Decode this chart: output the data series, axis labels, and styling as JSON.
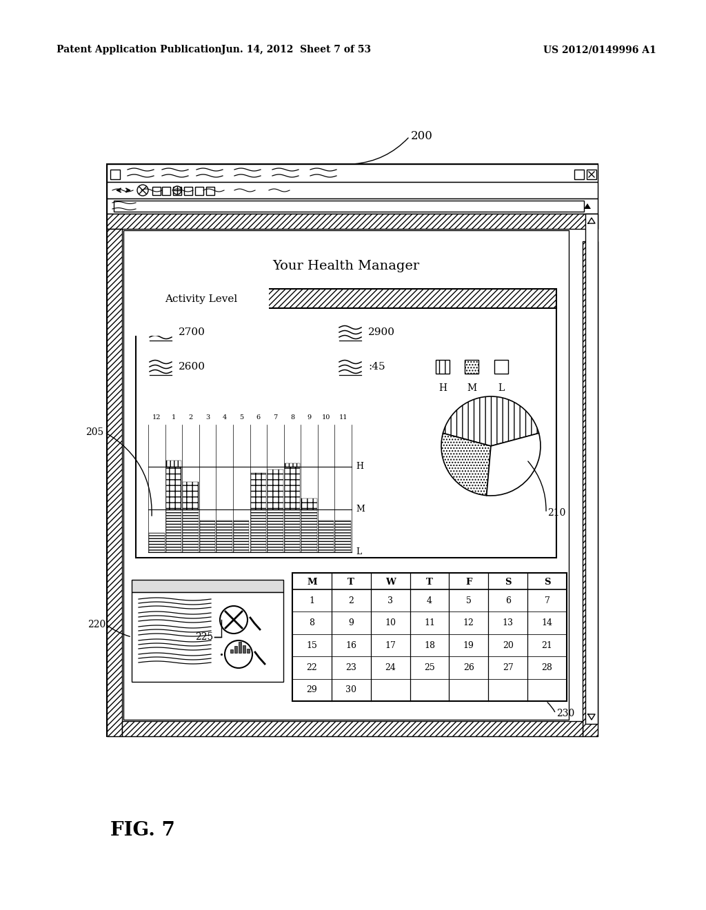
{
  "title_header_left": "Patent Application Publication",
  "title_header_mid": "Jun. 14, 2012  Sheet 7 of 53",
  "title_header_right": "US 2012/0149996 A1",
  "fig_label": "FIG. 7",
  "label_200": "200",
  "label_205": "205",
  "label_210": "210",
  "label_220": "220",
  "label_225": "225",
  "label_230": "230",
  "health_manager_title": "Your Health Manager",
  "activity_level_label": "Activity Level",
  "values_row1": [
    "2700",
    "2900"
  ],
  "values_row2": [
    "2600",
    ":45"
  ],
  "bar_hours": [
    "12",
    "1",
    "2",
    "3",
    "4",
    "5",
    "6",
    "7",
    "8",
    "9",
    "10",
    "11"
  ],
  "hml_labels": [
    "H",
    "M",
    "L"
  ],
  "legend_labels": [
    "H",
    "M",
    "L"
  ],
  "calendar_header": [
    "M",
    "T",
    "W",
    "T",
    "F",
    "S",
    "S"
  ],
  "calendar_rows": [
    [
      "1",
      "2",
      "3",
      "4",
      "5",
      "6",
      "7"
    ],
    [
      "8",
      "9",
      "10",
      "11",
      "12",
      "13",
      "14"
    ],
    [
      "15",
      "16",
      "17",
      "18",
      "19",
      "20",
      "21"
    ],
    [
      "22",
      "23",
      "24",
      "25",
      "26",
      "27",
      "28"
    ],
    [
      "29",
      "30",
      "",
      "",
      "",
      "",
      ""
    ]
  ],
  "bg_color": "#ffffff"
}
